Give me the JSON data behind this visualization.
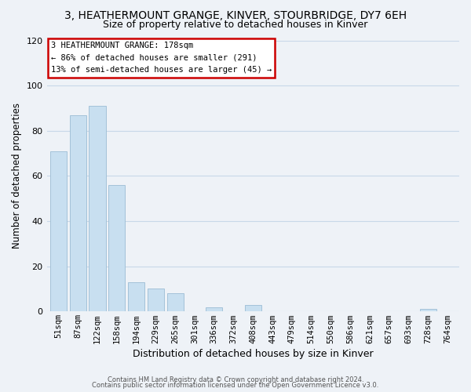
{
  "title": "3, HEATHERMOUNT GRANGE, KINVER, STOURBRIDGE, DY7 6EH",
  "subtitle": "Size of property relative to detached houses in Kinver",
  "xlabel": "Distribution of detached houses by size in Kinver",
  "ylabel": "Number of detached properties",
  "bar_labels": [
    "51sqm",
    "87sqm",
    "122sqm",
    "158sqm",
    "194sqm",
    "229sqm",
    "265sqm",
    "301sqm",
    "336sqm",
    "372sqm",
    "408sqm",
    "443sqm",
    "479sqm",
    "514sqm",
    "550sqm",
    "586sqm",
    "621sqm",
    "657sqm",
    "693sqm",
    "728sqm",
    "764sqm"
  ],
  "bar_values": [
    71,
    87,
    91,
    56,
    13,
    10,
    8,
    0,
    2,
    0,
    3,
    0,
    0,
    0,
    0,
    0,
    0,
    0,
    0,
    1,
    0
  ],
  "bar_color_normal": "#c8dff0",
  "bar_edge_color": "#9bbcd4",
  "annotation_title": "3 HEATHERMOUNT GRANGE: 178sqm",
  "annotation_line1": "← 86% of detached houses are smaller (291)",
  "annotation_line2": "13% of semi-detached houses are larger (45) →",
  "annotation_box_facecolor": "#ffffff",
  "annotation_box_edgecolor": "#cc0000",
  "ylim": [
    0,
    120
  ],
  "yticks": [
    0,
    20,
    40,
    60,
    80,
    100,
    120
  ],
  "grid_color": "#c8d8e8",
  "footer1": "Contains HM Land Registry data © Crown copyright and database right 2024.",
  "footer2": "Contains public sector information licensed under the Open Government Licence v3.0.",
  "bg_color": "#eef2f7",
  "plot_bg_color": "#eef2f7"
}
